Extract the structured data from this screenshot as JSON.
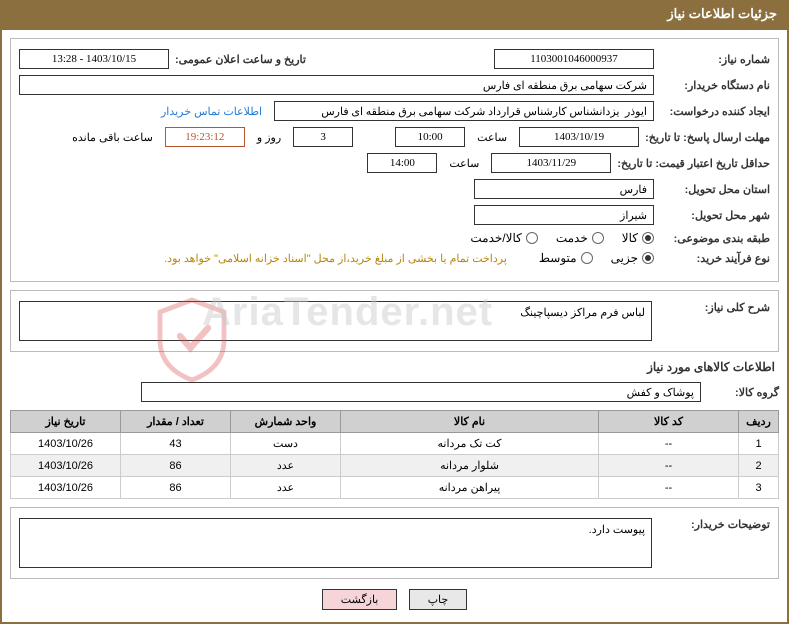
{
  "header": {
    "title": "جزئیات اطلاعات نیاز"
  },
  "form": {
    "need_number_label": "شماره نیاز:",
    "need_number": "1103001046000937",
    "announce_label": "تاریخ و ساعت اعلان عمومی:",
    "announce_value": "1403/10/15 - 13:28",
    "buyer_org_label": "نام دستگاه خریدار:",
    "buyer_org": "شرکت سهامی برق منطقه ای فارس",
    "requester_label": "ایجاد کننده درخواست:",
    "requester": "ایوذر  یزدانشناس کارشناس قرارداد شرکت سهامی برق منطقه ای فارس",
    "contact_link": "اطلاعات تماس خریدار",
    "deadline_label": "مهلت ارسال پاسخ: تا تاریخ:",
    "deadline_date": "1403/10/19",
    "time_label": "ساعت",
    "deadline_time": "10:00",
    "days_count": "3",
    "days_label": "روز و",
    "countdown": "19:23:12",
    "remaining_label": "ساعت باقی مانده",
    "validity_label": "حداقل تاریخ اعتبار قیمت: تا تاریخ:",
    "validity_date": "1403/11/29",
    "validity_time": "14:00",
    "province_label": "استان محل تحویل:",
    "province": "فارس",
    "city_label": "شهر محل تحویل:",
    "city": "شیراز",
    "category_label": "طبقه بندی موضوعی:",
    "cat_goods": "کالا",
    "cat_service": "خدمت",
    "cat_goods_service": "کالا/خدمت",
    "purchase_type_label": "نوع فرآیند خرید:",
    "pt_small": "جزیی",
    "pt_medium": "متوسط",
    "payment_note": "پرداخت تمام یا بخشی از مبلغ خرید،از محل \"اسناد خزانه اسلامی\" خواهد بود.",
    "general_desc_label": "شرح کلی نیاز:",
    "general_desc": "لباس فرم مراکز دیسپاچینگ",
    "goods_section_title": "اطلاعات کالاهای مورد نیاز",
    "group_label": "گروه کالا:",
    "group_value": "پوشاک و کفش",
    "buyer_notes_label": "توضیحات خریدار:",
    "buyer_notes": "پیوست دارد."
  },
  "table": {
    "columns": [
      "ردیف",
      "کد کالا",
      "نام کالا",
      "واحد شمارش",
      "تعداد / مقدار",
      "تاریخ نیاز"
    ],
    "rows": [
      [
        "1",
        "--",
        "کت تک مردانه",
        "دست",
        "43",
        "1403/10/26"
      ],
      [
        "2",
        "--",
        "شلوار مردانه",
        "عدد",
        "86",
        "1403/10/26"
      ],
      [
        "3",
        "--",
        "پیراهن مردانه",
        "عدد",
        "86",
        "1403/10/26"
      ]
    ],
    "col_widths": [
      "40px",
      "140px",
      "auto",
      "110px",
      "110px",
      "110px"
    ]
  },
  "buttons": {
    "print": "چاپ",
    "back": "بازگشت"
  },
  "watermark": "AriaTender.net",
  "colors": {
    "header_bg": "#8b6f3e",
    "link": "#1e7bd6",
    "note": "#b8860b"
  }
}
